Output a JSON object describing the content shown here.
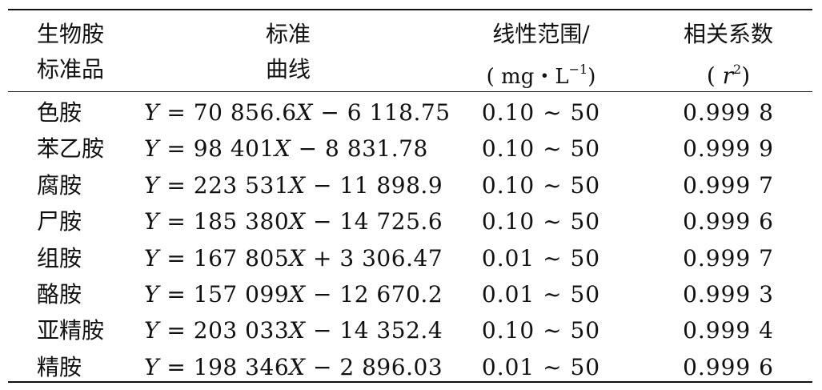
{
  "table": {
    "headers": {
      "col1_line1": "生物胺",
      "col1_line2": "标准品",
      "col2_line1": "标准",
      "col2_line2": "曲线",
      "col3_line1": "线性范围/",
      "col3_line2": "( mg・L",
      "col3_sup": "−1",
      "col3_close": ")",
      "col4_line1": "相关系数",
      "col4_open": "( ",
      "col4_var": "r",
      "col4_sup": "2",
      "col4_close": ")"
    },
    "rows": [
      {
        "amine": "色胺",
        "curve": "Y = 70 856.6X − 6 118.75",
        "range": "0.10 ~ 50",
        "r2": "0.999 8"
      },
      {
        "amine": "苯乙胺",
        "curve": "Y = 98 401X − 8 831.78",
        "range": "0.10 ~ 50",
        "r2": "0.999 9"
      },
      {
        "amine": "腐胺",
        "curve": "Y = 223 531X − 11 898.9",
        "range": "0.10 ~ 50",
        "r2": "0.999 7"
      },
      {
        "amine": "尸胺",
        "curve": "Y = 185 380X − 14 725.6",
        "range": "0.10 ~ 50",
        "r2": "0.999 6"
      },
      {
        "amine": "组胺",
        "curve": "Y = 167 805X + 3 306.47",
        "range": "0.01 ~ 50",
        "r2": "0.999 7"
      },
      {
        "amine": "酪胺",
        "curve": "Y = 157 099X − 12 670.2",
        "range": "0.01 ~ 50",
        "r2": "0.999 3"
      },
      {
        "amine": "亚精胺",
        "curve": "Y = 203 033X − 14 352.4",
        "range": "0.10 ~ 50",
        "r2": "0.999 4"
      },
      {
        "amine": "精胺",
        "curve": "Y = 198 346X − 2 896.03",
        "range": "0.01 ~ 50",
        "r2": "0.999 6"
      }
    ]
  }
}
